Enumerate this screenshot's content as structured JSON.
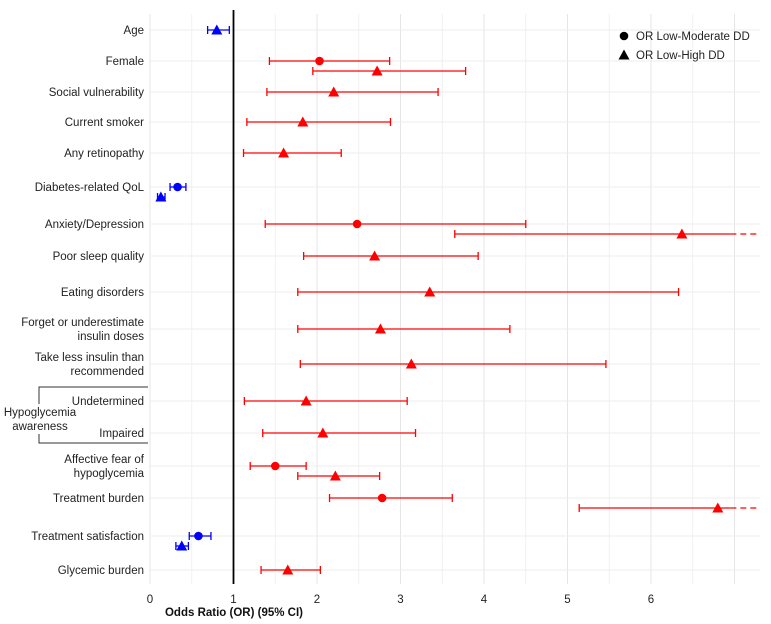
{
  "chart_data": {
    "type": "forest",
    "xlabel": "Odds Ratio (OR) (95% CI)",
    "xlim": [
      0,
      7.3
    ],
    "xticks": [
      0,
      1,
      2,
      3,
      4,
      5,
      6
    ],
    "reference_line": 1,
    "colors": {
      "significant": "#ff0000",
      "protective": "#0000ff"
    },
    "legend": [
      {
        "shape": "circle",
        "label": "OR Low-Moderate DD"
      },
      {
        "shape": "triangle",
        "label": "OR Low-High DD"
      }
    ],
    "group_labels": [
      {
        "label": "Hypoglycemia",
        "from": "Undetermined",
        "to": "Impaired"
      },
      {
        "label": "awareness",
        "from": "Undetermined",
        "to": "Impaired"
      }
    ],
    "rows": [
      {
        "label": [
          "Age"
        ],
        "estimates": [
          {
            "series": "OR Low-High DD",
            "shape": "triangle",
            "or": 0.8,
            "lo": 0.69,
            "hi": 0.95,
            "color": "#0000ff",
            "offset": 0
          }
        ]
      },
      {
        "label": [
          "Female"
        ],
        "estimates": [
          {
            "series": "OR Low-Moderate DD",
            "shape": "circle",
            "or": 2.03,
            "lo": 1.43,
            "hi": 2.87,
            "color": "#ff0000",
            "offset": 0
          },
          {
            "series": "OR Low-High DD",
            "shape": "triangle",
            "or": 2.72,
            "lo": 1.95,
            "hi": 3.78,
            "color": "#ff0000",
            "offset": 1
          }
        ]
      },
      {
        "label": [
          "Social vulnerability"
        ],
        "estimates": [
          {
            "series": "OR Low-High DD",
            "shape": "triangle",
            "or": 2.2,
            "lo": 1.4,
            "hi": 3.45,
            "color": "#ff0000",
            "offset": 0
          }
        ]
      },
      {
        "label": [
          "Current smoker"
        ],
        "estimates": [
          {
            "series": "OR Low-High DD",
            "shape": "triangle",
            "or": 1.83,
            "lo": 1.16,
            "hi": 2.88,
            "color": "#ff0000",
            "offset": 0
          }
        ]
      },
      {
        "label": [
          "Any retinopathy"
        ],
        "estimates": [
          {
            "series": "OR Low-High DD",
            "shape": "triangle",
            "or": 1.6,
            "lo": 1.12,
            "hi": 2.29,
            "color": "#ff0000",
            "offset": 0
          }
        ]
      },
      {
        "label": [
          "Diabetes-related QoL"
        ],
        "estimates": [
          {
            "series": "OR Low-Moderate DD",
            "shape": "circle",
            "or": 0.33,
            "lo": 0.24,
            "hi": 0.43,
            "color": "#0000ff",
            "offset": 0
          },
          {
            "series": "OR Low-High DD",
            "shape": "triangle",
            "or": 0.13,
            "lo": 0.09,
            "hi": 0.18,
            "color": "#0000ff",
            "offset": 1
          }
        ]
      },
      {
        "label": [
          "Anxiety/Depression"
        ],
        "estimates": [
          {
            "series": "OR Low-Moderate DD",
            "shape": "circle",
            "or": 2.48,
            "lo": 1.38,
            "hi": 4.5,
            "color": "#ff0000",
            "offset": 0
          },
          {
            "series": "OR Low-High DD",
            "shape": "triangle",
            "or": 6.37,
            "lo": 3.65,
            "hi": 11.1,
            "color": "#ff0000",
            "offset": 1
          }
        ]
      },
      {
        "label": [
          "Poor sleep quality"
        ],
        "estimates": [
          {
            "series": "OR Low-High DD",
            "shape": "triangle",
            "or": 2.69,
            "lo": 1.84,
            "hi": 3.93,
            "color": "#ff0000",
            "offset": 0
          }
        ]
      },
      {
        "label": [
          "Eating disorders"
        ],
        "estimates": [
          {
            "series": "OR Low-High DD",
            "shape": "triangle",
            "or": 3.35,
            "lo": 1.77,
            "hi": 6.33,
            "color": "#ff0000",
            "offset": 0
          }
        ]
      },
      {
        "label": [
          "Forget or underestimate",
          "insulin doses"
        ],
        "estimates": [
          {
            "series": "OR Low-High DD",
            "shape": "triangle",
            "or": 2.76,
            "lo": 1.77,
            "hi": 4.31,
            "color": "#ff0000",
            "offset": 0
          }
        ]
      },
      {
        "label": [
          "Take less insulin than",
          "recommended"
        ],
        "estimates": [
          {
            "series": "OR Low-High DD",
            "shape": "triangle",
            "or": 3.13,
            "lo": 1.8,
            "hi": 5.46,
            "color": "#ff0000",
            "offset": 0
          }
        ]
      },
      {
        "label": [
          "Undetermined"
        ],
        "estimates": [
          {
            "series": "OR Low-High DD",
            "shape": "triangle",
            "or": 1.87,
            "lo": 1.13,
            "hi": 3.08,
            "color": "#ff0000",
            "offset": 0
          }
        ]
      },
      {
        "label": [
          "Impaired"
        ],
        "estimates": [
          {
            "series": "OR Low-High DD",
            "shape": "triangle",
            "or": 2.07,
            "lo": 1.35,
            "hi": 3.18,
            "color": "#ff0000",
            "offset": 0
          }
        ]
      },
      {
        "label": [
          "Affective fear of",
          "hypoglycemia"
        ],
        "estimates": [
          {
            "series": "OR Low-Moderate DD",
            "shape": "circle",
            "or": 1.5,
            "lo": 1.2,
            "hi": 1.87,
            "color": "#ff0000",
            "offset": 0
          },
          {
            "series": "OR Low-High DD",
            "shape": "triangle",
            "or": 2.22,
            "lo": 1.77,
            "hi": 2.75,
            "color": "#ff0000",
            "offset": 1
          }
        ]
      },
      {
        "label": [
          "Treatment burden"
        ],
        "estimates": [
          {
            "series": "OR Low-Moderate DD",
            "shape": "circle",
            "or": 2.78,
            "lo": 2.15,
            "hi": 3.62,
            "color": "#ff0000",
            "offset": 0
          },
          {
            "series": "OR Low-High DD",
            "shape": "triangle",
            "or": 6.8,
            "lo": 5.14,
            "hi": 9.0,
            "color": "#ff0000",
            "offset": 1
          }
        ]
      },
      {
        "label": [
          "Treatment satisfaction"
        ],
        "estimates": [
          {
            "series": "OR Low-Moderate DD",
            "shape": "circle",
            "or": 0.58,
            "lo": 0.47,
            "hi": 0.73,
            "color": "#0000ff",
            "offset": 0
          },
          {
            "series": "OR Low-High DD",
            "shape": "triangle",
            "or": 0.38,
            "lo": 0.31,
            "hi": 0.46,
            "color": "#0000ff",
            "offset": 1
          }
        ]
      },
      {
        "label": [
          "Glycemic burden"
        ],
        "estimates": [
          {
            "series": "OR Low-High DD",
            "shape": "triangle",
            "or": 1.65,
            "lo": 1.33,
            "hi": 2.04,
            "color": "#ff0000",
            "offset": 0
          }
        ]
      }
    ]
  }
}
